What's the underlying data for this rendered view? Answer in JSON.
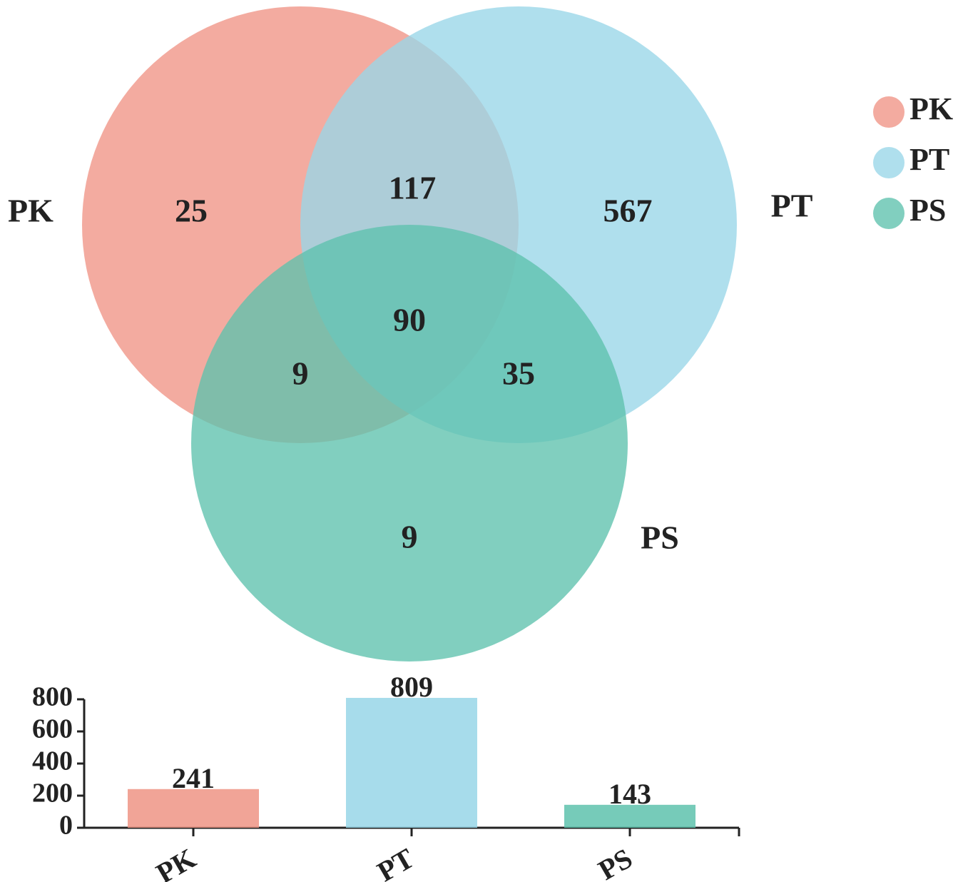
{
  "chart_data": [
    {
      "type": "venn",
      "sets": [
        {
          "name": "PK",
          "color": "#ef9485"
        },
        {
          "name": "PT",
          "color": "#98d6e8"
        },
        {
          "name": "PS",
          "color": "#5ec2ad"
        }
      ],
      "regions": [
        {
          "sets": [
            "PK"
          ],
          "value": 25
        },
        {
          "sets": [
            "PK",
            "PT"
          ],
          "value": 117
        },
        {
          "sets": [
            "PT"
          ],
          "value": 567
        },
        {
          "sets": [
            "PK",
            "PT",
            "PS"
          ],
          "value": 90
        },
        {
          "sets": [
            "PK",
            "PS"
          ],
          "value": 9
        },
        {
          "sets": [
            "PT",
            "PS"
          ],
          "value": 35
        },
        {
          "sets": [
            "PS"
          ],
          "value": 9
        }
      ],
      "legend": {
        "position": "top-right",
        "entries": [
          "PK",
          "PT",
          "PS"
        ]
      }
    },
    {
      "type": "bar",
      "categories": [
        "PK",
        "PT",
        "PS"
      ],
      "values": [
        241,
        809,
        143
      ],
      "colors": [
        "#ef9485",
        "#98d6e8",
        "#5ec2ad"
      ],
      "ylim": [
        0,
        800
      ],
      "yticks": [
        0,
        200,
        400,
        600,
        800
      ],
      "xlabel": "",
      "ylabel": ""
    }
  ]
}
